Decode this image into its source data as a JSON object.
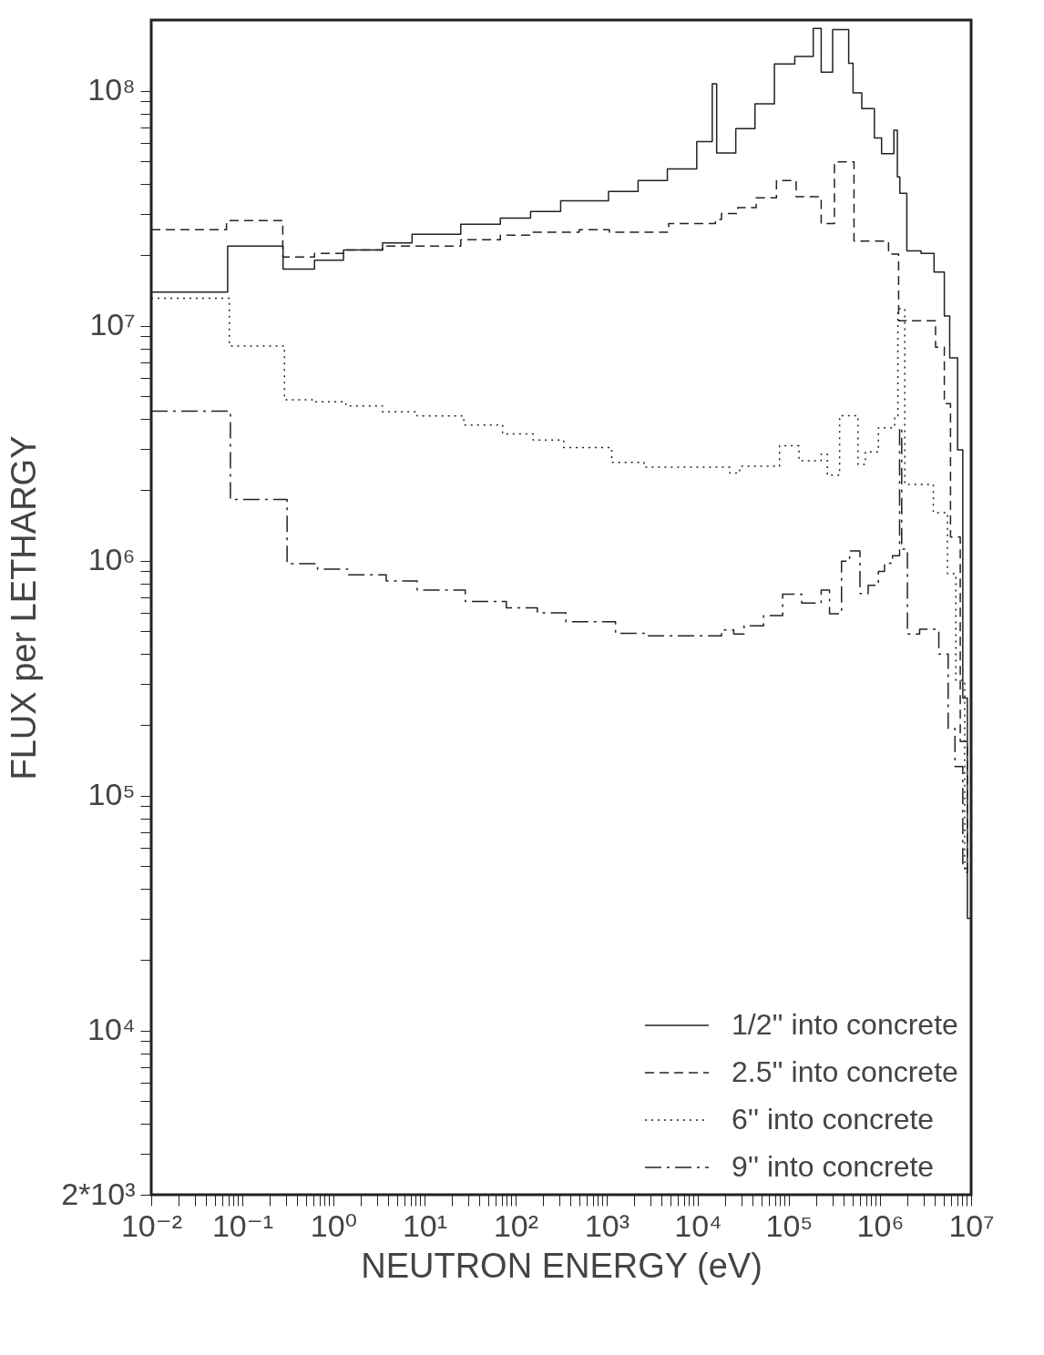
{
  "chart_data": {
    "type": "step",
    "xlabel": "NEUTRON ENERGY (eV)",
    "ylabel": "FLUX per LETHARGY",
    "log": "xy",
    "legend": "bottom right",
    "xlim": [
      0.01,
      10000000
    ],
    "ylim": [
      2000,
      200000000
    ],
    "xticks": [
      {
        "value": 0.01,
        "label": "10⁻²"
      },
      {
        "value": 0.02,
        "label": null
      },
      {
        "value": 0.03,
        "label": null
      },
      {
        "value": 0.04,
        "label": null
      },
      {
        "value": 0.05,
        "label": null
      },
      {
        "value": 0.06,
        "label": null
      },
      {
        "value": 0.07,
        "label": null
      },
      {
        "value": 0.08,
        "label": null
      },
      {
        "value": 0.09,
        "label": null
      },
      {
        "value": 0.1,
        "label": "10⁻¹"
      },
      {
        "value": 0.2,
        "label": null
      },
      {
        "value": 0.3,
        "label": null
      },
      {
        "value": 0.4,
        "label": null
      },
      {
        "value": 0.5,
        "label": null
      },
      {
        "value": 0.6,
        "label": null
      },
      {
        "value": 0.7,
        "label": null
      },
      {
        "value": 0.8,
        "label": null
      },
      {
        "value": 0.9,
        "label": null
      },
      {
        "value": 1,
        "label": "10⁰"
      },
      {
        "value": 2,
        "label": null
      },
      {
        "value": 3,
        "label": null
      },
      {
        "value": 4,
        "label": null
      },
      {
        "value": 5,
        "label": null
      },
      {
        "value": 6,
        "label": null
      },
      {
        "value": 7,
        "label": null
      },
      {
        "value": 8,
        "label": null
      },
      {
        "value": 9,
        "label": null
      },
      {
        "value": 10,
        "label": "10¹"
      },
      {
        "value": 20,
        "label": null
      },
      {
        "value": 30,
        "label": null
      },
      {
        "value": 40,
        "label": null
      },
      {
        "value": 50,
        "label": null
      },
      {
        "value": 60,
        "label": null
      },
      {
        "value": 70,
        "label": null
      },
      {
        "value": 80,
        "label": null
      },
      {
        "value": 90,
        "label": null
      },
      {
        "value": 100,
        "label": "10²"
      },
      {
        "value": 200,
        "label": null
      },
      {
        "value": 300,
        "label": null
      },
      {
        "value": 400,
        "label": null
      },
      {
        "value": 500,
        "label": null
      },
      {
        "value": 600,
        "label": null
      },
      {
        "value": 700,
        "label": null
      },
      {
        "value": 800,
        "label": null
      },
      {
        "value": 900,
        "label": null
      },
      {
        "value": 1000,
        "label": "10³"
      },
      {
        "value": 2000,
        "label": null
      },
      {
        "value": 3000,
        "label": null
      },
      {
        "value": 4000,
        "label": null
      },
      {
        "value": 5000,
        "label": null
      },
      {
        "value": 6000,
        "label": null
      },
      {
        "value": 7000,
        "label": null
      },
      {
        "value": 8000,
        "label": null
      },
      {
        "value": 9000,
        "label": null
      },
      {
        "value": 10000,
        "label": "10⁴"
      },
      {
        "value": 20000,
        "label": null
      },
      {
        "value": 30000,
        "label": null
      },
      {
        "value": 40000,
        "label": null
      },
      {
        "value": 50000,
        "label": null
      },
      {
        "value": 60000,
        "label": null
      },
      {
        "value": 70000,
        "label": null
      },
      {
        "value": 80000,
        "label": null
      },
      {
        "value": 90000,
        "label": null
      },
      {
        "value": 100000,
        "label": "10⁵"
      },
      {
        "value": 200000,
        "label": null
      },
      {
        "value": 300000,
        "label": null
      },
      {
        "value": 400000,
        "label": null
      },
      {
        "value": 500000,
        "label": null
      },
      {
        "value": 600000,
        "label": null
      },
      {
        "value": 700000,
        "label": null
      },
      {
        "value": 800000,
        "label": null
      },
      {
        "value": 900000,
        "label": null
      },
      {
        "value": 1000000,
        "label": "10⁶"
      },
      {
        "value": 2000000,
        "label": null
      },
      {
        "value": 3000000,
        "label": null
      },
      {
        "value": 4000000,
        "label": null
      },
      {
        "value": 5000000,
        "label": null
      },
      {
        "value": 6000000,
        "label": null
      },
      {
        "value": 7000000,
        "label": null
      },
      {
        "value": 8000000,
        "label": null
      },
      {
        "value": 9000000,
        "label": null
      },
      {
        "value": 10000000,
        "label": "10⁷"
      }
    ],
    "yticks": [
      {
        "value": 2000,
        "label": "2*10³"
      },
      {
        "value": 3000,
        "label": null
      },
      {
        "value": 4000,
        "label": null
      },
      {
        "value": 5000,
        "label": null
      },
      {
        "value": 6000,
        "label": null
      },
      {
        "value": 7000,
        "label": null
      },
      {
        "value": 8000,
        "label": null
      },
      {
        "value": 9000,
        "label": null
      },
      {
        "value": 10000,
        "label": "10⁴"
      },
      {
        "value": 20000,
        "label": null
      },
      {
        "value": 30000,
        "label": null
      },
      {
        "value": 40000,
        "label": null
      },
      {
        "value": 50000,
        "label": null
      },
      {
        "value": 60000,
        "label": null
      },
      {
        "value": 70000,
        "label": null
      },
      {
        "value": 80000,
        "label": null
      },
      {
        "value": 90000,
        "label": null
      },
      {
        "value": 100000,
        "label": "10⁵"
      },
      {
        "value": 200000,
        "label": null
      },
      {
        "value": 300000,
        "label": null
      },
      {
        "value": 400000,
        "label": null
      },
      {
        "value": 500000,
        "label": null
      },
      {
        "value": 600000,
        "label": null
      },
      {
        "value": 700000,
        "label": null
      },
      {
        "value": 800000,
        "label": null
      },
      {
        "value": 900000,
        "label": null
      },
      {
        "value": 1000000,
        "label": "10⁶"
      },
      {
        "value": 2000000,
        "label": null
      },
      {
        "value": 3000000,
        "label": null
      },
      {
        "value": 4000000,
        "label": null
      },
      {
        "value": 5000000,
        "label": null
      },
      {
        "value": 6000000,
        "label": null
      },
      {
        "value": 7000000,
        "label": null
      },
      {
        "value": 8000000,
        "label": null
      },
      {
        "value": 9000000,
        "label": null
      },
      {
        "value": 10000000,
        "label": "10⁷"
      },
      {
        "value": 20000000,
        "label": null
      },
      {
        "value": 30000000,
        "label": null
      },
      {
        "value": 40000000,
        "label": null
      },
      {
        "value": 50000000,
        "label": null
      },
      {
        "value": 60000000,
        "label": null
      },
      {
        "value": 70000000,
        "label": null
      },
      {
        "value": 80000000,
        "label": null
      },
      {
        "value": 90000000,
        "label": null
      },
      {
        "value": 100000000,
        "label": "10⁸"
      }
    ],
    "series": [
      {
        "name": "1/2'' into concrete",
        "color": "#222222",
        "line_style": "solid",
        "x": [
          0.01,
          0.069,
          0.28,
          0.62,
          1.29,
          3.46,
          7.3,
          25,
          68,
          146,
          312,
          1047,
          2210,
          4630,
          9730,
          14400,
          16100,
          26100,
          42400,
          69300,
          116000,
          185000,
          226000,
          302000,
          453000,
          506000,
          631000,
          867000,
          1040000,
          1420000,
          1550000,
          1650000,
          1970000,
          2820000,
          3920000,
          5080000,
          5820000,
          7100000,
          8100000,
          9100000,
          10000000
        ],
        "values": [
          13900000.0,
          21800000.0,
          17400000.0,
          19000000.0,
          21000000.0,
          22500000.0,
          24500000.0,
          27000000.0,
          28700000.0,
          30600000.0,
          34000000.0,
          37300000.0,
          41500000.0,
          46500000.0,
          60700000.0,
          107000000.0,
          54300000.0,
          69000000.0,
          88000000.0,
          130000000.0,
          140000000.0,
          184000000.0,
          120000000.0,
          182000000.0,
          131000000.0,
          98000000.0,
          84000000.0,
          63000000.0,
          54000000.0,
          68000000.0,
          43000000.0,
          36600000.0,
          20800000.0,
          20300000.0,
          16900000.0,
          11000000.0,
          7300000.0,
          2960000.0,
          260000.0,
          30000.0,
          30000.0
        ]
      },
      {
        "name": "2.5'' into concrete",
        "color": "#222222",
        "line_style": "dashed",
        "x": [
          0.01,
          0.067,
          0.278,
          0.62,
          1.29,
          3.46,
          25,
          68,
          146,
          499,
          1070,
          4790,
          15600,
          18200,
          27500,
          43700,
          73000,
          120000,
          226000,
          316000,
          518000,
          1240000,
          1600000,
          4070000,
          5080000,
          5940000,
          7600000,
          9100000,
          10000000
        ],
        "values": [
          25600000.0,
          28000000.0,
          19600000.0,
          20300000.0,
          21000000.0,
          21800000.0,
          23200000.0,
          24300000.0,
          25000000.0,
          25600000.0,
          25000000.0,
          27200000.0,
          28300000.0,
          30000000.0,
          31800000.0,
          35000000.0,
          41500000.0,
          35400000.0,
          27200000.0,
          49800000.0,
          22900000.0,
          20200000.0,
          10500000.0,
          8100000.0,
          4660000.0,
          1260000.0,
          170000.0,
          47000.0,
          47000.0
        ]
      },
      {
        "name": "6'' into concrete",
        "color": "#222222",
        "line_style": "dotted",
        "x": [
          0.01,
          0.072,
          0.29,
          0.63,
          1.37,
          3.46,
          8.3,
          27,
          72,
          156,
          337,
          1135,
          2560,
          22500,
          28800,
          78900,
          129000,
          226000,
          264000,
          360000,
          573000,
          690000,
          960000,
          1450000,
          1570000,
          1870000,
          3850000,
          5500000,
          6800000,
          8500000,
          10000000
        ],
        "values": [
          13100000.0,
          8200000.0,
          4840000.0,
          4740000.0,
          4560000.0,
          4300000.0,
          4130000.0,
          3780000.0,
          3460000.0,
          3260000.0,
          3030000.0,
          2620000.0,
          2500000.0,
          2360000.0,
          2520000.0,
          3080000.0,
          2660000.0,
          2840000.0,
          2310000.0,
          4140000.0,
          2570000.0,
          2900000.0,
          3680000.0,
          4140000.0,
          11800000.0,
          2110000.0,
          1600000.0,
          880000.0,
          310000.0,
          47000.0,
          47000.0
        ]
      },
      {
        "name": "9'' into concrete",
        "color": "#222222",
        "line_style": "dashdot",
        "x": [
          0.01,
          0.074,
          0.31,
          0.67,
          1.44,
          3.8,
          8.3,
          28,
          79,
          173,
          357,
          1250,
          2720,
          18200,
          24800,
          32200,
          52700,
          85300,
          138000,
          226000,
          279000,
          378000,
          463000,
          602000,
          741000,
          960000,
          1120000,
          1370000,
          1640000,
          1730000,
          2000000,
          2720000,
          4420000,
          5600000,
          6650000,
          8100000,
          10000000
        ],
        "values": [
          4330000.0,
          1820000.0,
          970000.0,
          920000.0,
          870000.0,
          820000.0,
          750000.0,
          670000.0,
          630000.0,
          600000.0,
          550000.0,
          490000.0,
          478000.0,
          507000.0,
          487000.0,
          528000.0,
          583000.0,
          720000.0,
          660000.0,
          750000.0,
          594000.0,
          995000.0,
          1100000.0,
          724000.0,
          785000.0,
          900000.0,
          975000.0,
          1050000.0,
          3680000.0,
          1120000.0,
          487000.0,
          510000.0,
          400000.0,
          193000.0,
          133000.0,
          49000.0,
          49000.0
        ]
      }
    ]
  }
}
